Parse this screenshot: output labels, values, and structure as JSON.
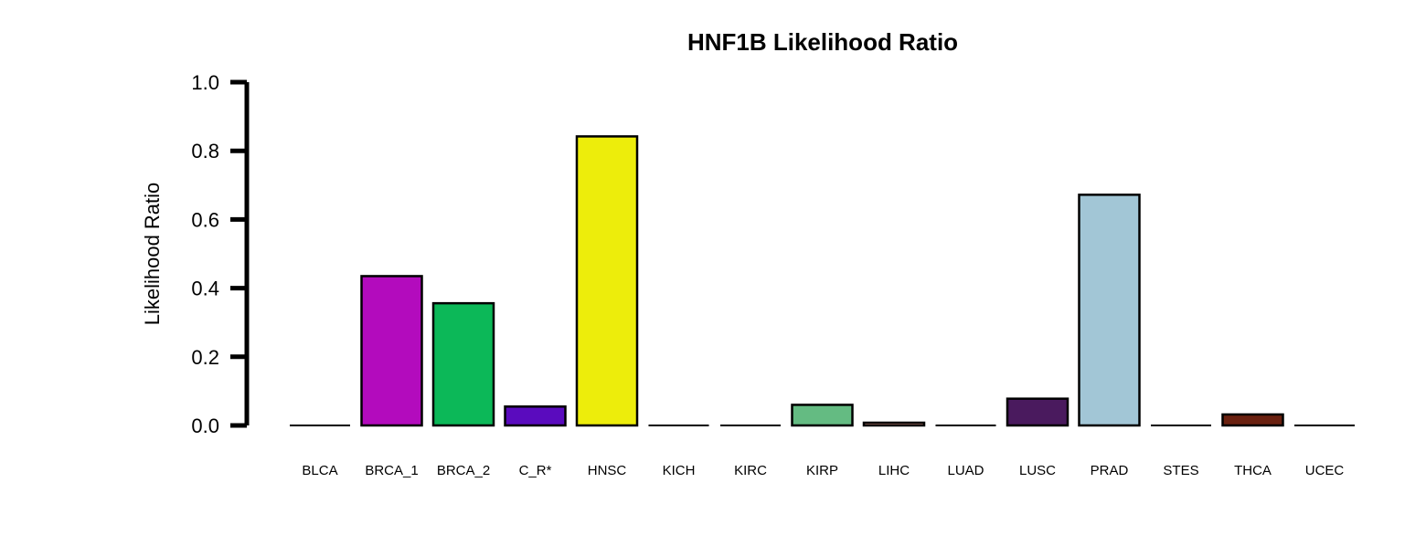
{
  "chart_data": {
    "type": "bar",
    "title": "HNF1B Likelihood Ratio",
    "xlabel": "",
    "ylabel": "Likelihood Ratio",
    "ylim": [
      0,
      1.0
    ],
    "yticks": [
      "0.0",
      "0.2",
      "0.4",
      "0.6",
      "0.8",
      "1.0"
    ],
    "grid": false,
    "categories": [
      "BLCA",
      "BRCA_1",
      "BRCA_2",
      "C_R*",
      "HNSC",
      "KICH",
      "KIRC",
      "KIRP",
      "LIHC",
      "LUAD",
      "LUSC",
      "PRAD",
      "STES",
      "THCA",
      "UCEC"
    ],
    "values": [
      0.0,
      0.435,
      0.356,
      0.055,
      0.842,
      0.0,
      0.0,
      0.06,
      0.008,
      0.0,
      0.078,
      0.672,
      0.0,
      0.032,
      0.0
    ],
    "colors": [
      "#c0c0c0",
      "#b30bbd",
      "#0cb858",
      "#5a0bbe",
      "#eded0b",
      "#c0c0c0",
      "#c0c0c0",
      "#64bb82",
      "#e89a8a",
      "#c0c0c0",
      "#4a1a5e",
      "#a2c6d6",
      "#c0c0c0",
      "#6a2110",
      "#c0c0c0"
    ]
  }
}
